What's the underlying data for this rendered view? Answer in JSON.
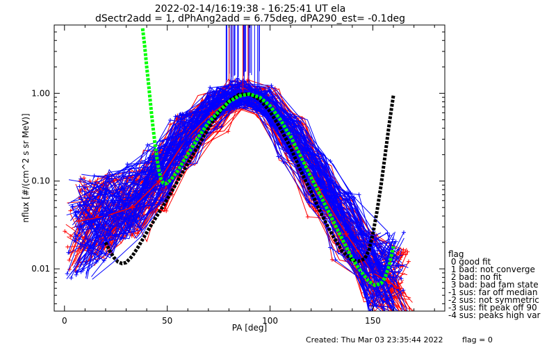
{
  "title_line1": "2022-02-14/16:19:38 - 16:25:41 UT ela",
  "title_line2": "dSectr2add = 1, dPhAng2add = 6.75deg, dPA290_est=  -0.1deg",
  "chart_data": {
    "type": "line",
    "xlabel": "PA [deg]",
    "ylabel": "nflux [#/(cm^2 s sr MeV)]",
    "xlim": [
      -5,
      185
    ],
    "ylim": [
      0.0033,
      6.0
    ],
    "yscale": "log",
    "x_ticks": [
      0,
      50,
      100,
      150
    ],
    "y_ticks": [
      0.01,
      0.1,
      1.0
    ],
    "y_tick_labels": [
      "0.01",
      "0.10",
      "1.00"
    ],
    "colors": {
      "red": "#ff0000",
      "blue": "#0000ff",
      "black": "#000000",
      "green": "#00ff00"
    },
    "red_series": {
      "name": "",
      "x": [
        7,
        20,
        33,
        46,
        59,
        72,
        85,
        98,
        111,
        124,
        137,
        150,
        163
      ],
      "y": [
        0.035,
        0.04,
        0.05,
        0.1,
        0.3,
        0.6,
        1.0,
        0.8,
        0.3,
        0.08,
        0.025,
        0.009,
        0.006
      ]
    },
    "blue_series": {
      "name": "",
      "x": [
        7,
        20,
        33,
        46,
        59,
        72,
        85,
        98,
        111,
        124,
        137,
        150,
        160
      ],
      "y": [
        0.03,
        0.04,
        0.06,
        0.12,
        0.3,
        0.7,
        1.0,
        0.8,
        0.3,
        0.1,
        0.03,
        0.009,
        0.008
      ]
    },
    "black_fit": {
      "name": "",
      "x": [
        20,
        22,
        24,
        26,
        28,
        30,
        33,
        36,
        40,
        44,
        48,
        52,
        56,
        60,
        65,
        70,
        75,
        80,
        85,
        90,
        95,
        100,
        105,
        110,
        115,
        120,
        125,
        130,
        135,
        140,
        143,
        146,
        148,
        150,
        152,
        154,
        156,
        158,
        160
      ],
      "y": [
        0.02,
        0.016,
        0.0135,
        0.012,
        0.0115,
        0.0118,
        0.014,
        0.018,
        0.026,
        0.037,
        0.052,
        0.075,
        0.11,
        0.16,
        0.25,
        0.4,
        0.6,
        0.82,
        0.97,
        0.98,
        0.85,
        0.62,
        0.4,
        0.24,
        0.13,
        0.075,
        0.042,
        0.025,
        0.016,
        0.0125,
        0.0122,
        0.013,
        0.016,
        0.025,
        0.045,
        0.09,
        0.2,
        0.45,
        0.95
      ]
    },
    "green_fit": {
      "name": "",
      "x": [
        38,
        39,
        40,
        41,
        42,
        43,
        44,
        45,
        46,
        47,
        48,
        49,
        50,
        52,
        55,
        58,
        62,
        66,
        70,
        75,
        80,
        85,
        90,
        95,
        100,
        105,
        110,
        115,
        120,
        125,
        130,
        135,
        140,
        144,
        148,
        151,
        154,
        156,
        158,
        160
      ],
      "y": [
        5.5,
        3.5,
        2.0,
        1.2,
        0.7,
        0.42,
        0.27,
        0.18,
        0.13,
        0.105,
        0.095,
        0.093,
        0.095,
        0.105,
        0.13,
        0.17,
        0.24,
        0.34,
        0.46,
        0.62,
        0.8,
        0.93,
        0.98,
        0.9,
        0.72,
        0.5,
        0.32,
        0.19,
        0.11,
        0.065,
        0.038,
        0.022,
        0.013,
        0.0095,
        0.0072,
        0.0065,
        0.0068,
        0.008,
        0.011,
        0.018
      ]
    }
  },
  "legend": {
    "heading": "flag",
    "items": [
      " 0 good fit",
      " 1 bad: not converge",
      " 2 bad: no fit",
      " 3 bad: bad fam state",
      "-1 sus: far off median",
      "-2 sus: not symmetric",
      "-3 sus: fit peak off 90",
      "-4 sus: peaks high var"
    ]
  },
  "footer": {
    "created": "Created: Thu Mar 03 23:35:44 2022",
    "flag": "flag = 0"
  }
}
